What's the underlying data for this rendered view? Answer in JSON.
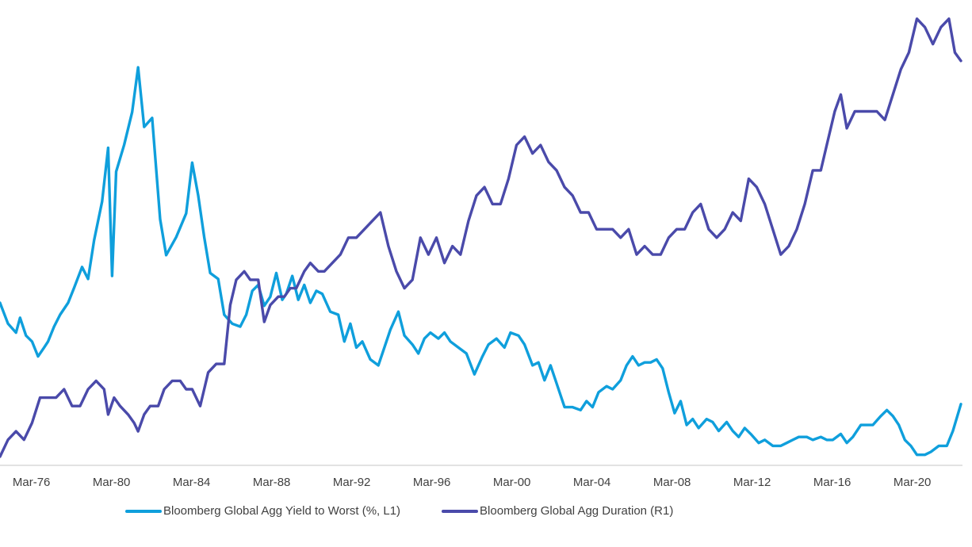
{
  "chart_data": {
    "type": "line",
    "title": "",
    "xlabel": "",
    "ylabel": "",
    "x_tick_labels": [
      "Mar-76",
      "Mar-80",
      "Mar-84",
      "Mar-88",
      "Mar-92",
      "Mar-96",
      "Mar-00",
      "Mar-04",
      "Mar-08",
      "Mar-12",
      "Mar-16",
      "Mar-20"
    ],
    "x_range": [
      1974.6,
      2022.6
    ],
    "grid": false,
    "legend_position": "bottom",
    "series": [
      {
        "name": "Bloomberg Global Agg Yield to Worst  (%, L1)",
        "axis": "left",
        "color": "#0f9fdc",
        "points": [
          [
            1974.6,
            8.4
          ],
          [
            1975.0,
            7.7
          ],
          [
            1975.4,
            7.4
          ],
          [
            1975.6,
            7.9
          ],
          [
            1975.9,
            7.3
          ],
          [
            1976.2,
            7.1
          ],
          [
            1976.5,
            6.6
          ],
          [
            1976.8,
            6.9
          ],
          [
            1977.0,
            7.1
          ],
          [
            1977.3,
            7.6
          ],
          [
            1977.6,
            8.0
          ],
          [
            1978.0,
            8.4
          ],
          [
            1978.3,
            8.9
          ],
          [
            1978.7,
            9.6
          ],
          [
            1979.0,
            9.2
          ],
          [
            1979.3,
            10.5
          ],
          [
            1979.7,
            11.8
          ],
          [
            1980.0,
            13.6
          ],
          [
            1980.2,
            9.3
          ],
          [
            1980.4,
            12.8
          ],
          [
            1980.8,
            13.7
          ],
          [
            1981.2,
            14.8
          ],
          [
            1981.5,
            16.3
          ],
          [
            1981.8,
            14.3
          ],
          [
            1982.2,
            14.6
          ],
          [
            1982.6,
            11.2
          ],
          [
            1982.9,
            10.0
          ],
          [
            1983.4,
            10.6
          ],
          [
            1983.9,
            11.4
          ],
          [
            1984.2,
            13.1
          ],
          [
            1984.5,
            12.0
          ],
          [
            1984.8,
            10.6
          ],
          [
            1985.1,
            9.4
          ],
          [
            1985.5,
            9.2
          ],
          [
            1985.8,
            8.0
          ],
          [
            1986.2,
            7.7
          ],
          [
            1986.6,
            7.6
          ],
          [
            1986.9,
            8.0
          ],
          [
            1987.2,
            8.8
          ],
          [
            1987.5,
            9.0
          ],
          [
            1987.8,
            8.3
          ],
          [
            1988.1,
            8.6
          ],
          [
            1988.4,
            9.4
          ],
          [
            1988.7,
            8.5
          ],
          [
            1988.9,
            8.7
          ],
          [
            1989.2,
            9.3
          ],
          [
            1989.5,
            8.5
          ],
          [
            1989.8,
            9.0
          ],
          [
            1990.1,
            8.4
          ],
          [
            1990.4,
            8.8
          ],
          [
            1990.7,
            8.7
          ],
          [
            1991.1,
            8.1
          ],
          [
            1991.5,
            8.0
          ],
          [
            1991.8,
            7.1
          ],
          [
            1992.1,
            7.7
          ],
          [
            1992.4,
            6.9
          ],
          [
            1992.7,
            7.1
          ],
          [
            1993.1,
            6.5
          ],
          [
            1993.5,
            6.3
          ],
          [
            1993.8,
            6.9
          ],
          [
            1994.1,
            7.5
          ],
          [
            1994.5,
            8.1
          ],
          [
            1994.8,
            7.3
          ],
          [
            1995.2,
            7.0
          ],
          [
            1995.5,
            6.7
          ],
          [
            1995.8,
            7.2
          ],
          [
            1996.1,
            7.4
          ],
          [
            1996.5,
            7.2
          ],
          [
            1996.8,
            7.4
          ],
          [
            1997.1,
            7.1
          ],
          [
            1997.5,
            6.9
          ],
          [
            1997.9,
            6.7
          ],
          [
            1998.3,
            6.0
          ],
          [
            1998.7,
            6.6
          ],
          [
            1999.0,
            7.0
          ],
          [
            1999.4,
            7.2
          ],
          [
            1999.8,
            6.9
          ],
          [
            2000.1,
            7.4
          ],
          [
            2000.5,
            7.3
          ],
          [
            2000.8,
            7.0
          ],
          [
            2001.2,
            6.3
          ],
          [
            2001.5,
            6.4
          ],
          [
            2001.8,
            5.8
          ],
          [
            2002.1,
            6.3
          ],
          [
            2002.4,
            5.7
          ],
          [
            2002.8,
            4.9
          ],
          [
            2003.2,
            4.9
          ],
          [
            2003.6,
            4.8
          ],
          [
            2003.9,
            5.1
          ],
          [
            2004.2,
            4.9
          ],
          [
            2004.5,
            5.4
          ],
          [
            2004.9,
            5.6
          ],
          [
            2005.2,
            5.5
          ],
          [
            2005.6,
            5.8
          ],
          [
            2005.9,
            6.3
          ],
          [
            2006.2,
            6.6
          ],
          [
            2006.5,
            6.3
          ],
          [
            2006.8,
            6.4
          ],
          [
            2007.1,
            6.4
          ],
          [
            2007.4,
            6.5
          ],
          [
            2007.7,
            6.2
          ],
          [
            2008.0,
            5.4
          ],
          [
            2008.3,
            4.7
          ],
          [
            2008.6,
            5.1
          ],
          [
            2008.9,
            4.3
          ],
          [
            2009.2,
            4.5
          ],
          [
            2009.5,
            4.2
          ],
          [
            2009.9,
            4.5
          ],
          [
            2010.2,
            4.4
          ],
          [
            2010.5,
            4.1
          ],
          [
            2010.9,
            4.4
          ],
          [
            2011.2,
            4.1
          ],
          [
            2011.5,
            3.9
          ],
          [
            2011.8,
            4.2
          ],
          [
            2012.1,
            4.0
          ],
          [
            2012.5,
            3.7
          ],
          [
            2012.8,
            3.8
          ],
          [
            2013.2,
            3.6
          ],
          [
            2013.6,
            3.6
          ],
          [
            2013.9,
            3.7
          ],
          [
            2014.2,
            3.8
          ],
          [
            2014.5,
            3.9
          ],
          [
            2014.9,
            3.9
          ],
          [
            2015.2,
            3.8
          ],
          [
            2015.6,
            3.9
          ],
          [
            2015.9,
            3.8
          ],
          [
            2016.2,
            3.8
          ],
          [
            2016.6,
            4.0
          ],
          [
            2016.9,
            3.7
          ],
          [
            2017.2,
            3.9
          ],
          [
            2017.6,
            4.3
          ],
          [
            2017.9,
            4.3
          ],
          [
            2018.2,
            4.3
          ],
          [
            2018.6,
            4.6
          ],
          [
            2018.9,
            4.8
          ],
          [
            2019.2,
            4.6
          ],
          [
            2019.5,
            4.3
          ],
          [
            2019.8,
            3.8
          ],
          [
            2020.1,
            3.6
          ],
          [
            2020.4,
            3.3
          ],
          [
            2020.8,
            3.3
          ],
          [
            2021.1,
            3.4
          ],
          [
            2021.5,
            3.6
          ],
          [
            2021.9,
            3.6
          ],
          [
            2022.2,
            4.1
          ],
          [
            2022.6,
            5.0
          ]
        ]
      },
      {
        "name": "Bloomberg Global Agg  Duration  (R1)",
        "axis": "right",
        "color": "#4a4aaa",
        "points": [
          [
            1974.6,
            4.2
          ],
          [
            1975.0,
            4.4
          ],
          [
            1975.4,
            4.5
          ],
          [
            1975.8,
            4.4
          ],
          [
            1976.2,
            4.6
          ],
          [
            1976.6,
            4.9
          ],
          [
            1977.0,
            4.9
          ],
          [
            1977.4,
            4.9
          ],
          [
            1977.8,
            5.0
          ],
          [
            1978.2,
            4.8
          ],
          [
            1978.6,
            4.8
          ],
          [
            1979.0,
            5.0
          ],
          [
            1979.4,
            5.1
          ],
          [
            1979.8,
            5.0
          ],
          [
            1980.0,
            4.7
          ],
          [
            1980.3,
            4.9
          ],
          [
            1980.6,
            4.8
          ],
          [
            1981.0,
            4.7
          ],
          [
            1981.3,
            4.6
          ],
          [
            1981.5,
            4.5
          ],
          [
            1981.8,
            4.7
          ],
          [
            1982.1,
            4.8
          ],
          [
            1982.5,
            4.8
          ],
          [
            1982.8,
            5.0
          ],
          [
            1983.2,
            5.1
          ],
          [
            1983.6,
            5.1
          ],
          [
            1983.9,
            5.0
          ],
          [
            1984.2,
            5.0
          ],
          [
            1984.6,
            4.8
          ],
          [
            1985.0,
            5.2
          ],
          [
            1985.4,
            5.3
          ],
          [
            1985.8,
            5.3
          ],
          [
            1986.1,
            6.0
          ],
          [
            1986.4,
            6.3
          ],
          [
            1986.8,
            6.4
          ],
          [
            1987.1,
            6.3
          ],
          [
            1987.5,
            6.3
          ],
          [
            1987.8,
            5.8
          ],
          [
            1988.1,
            6.0
          ],
          [
            1988.5,
            6.1
          ],
          [
            1988.8,
            6.1
          ],
          [
            1989.1,
            6.2
          ],
          [
            1989.4,
            6.2
          ],
          [
            1989.8,
            6.4
          ],
          [
            1990.1,
            6.5
          ],
          [
            1990.5,
            6.4
          ],
          [
            1990.8,
            6.4
          ],
          [
            1991.2,
            6.5
          ],
          [
            1991.6,
            6.6
          ],
          [
            1992.0,
            6.8
          ],
          [
            1992.4,
            6.8
          ],
          [
            1992.8,
            6.9
          ],
          [
            1993.2,
            7.0
          ],
          [
            1993.6,
            7.1
          ],
          [
            1994.0,
            6.7
          ],
          [
            1994.4,
            6.4
          ],
          [
            1994.8,
            6.2
          ],
          [
            1995.2,
            6.3
          ],
          [
            1995.6,
            6.8
          ],
          [
            1996.0,
            6.6
          ],
          [
            1996.4,
            6.8
          ],
          [
            1996.8,
            6.5
          ],
          [
            1997.2,
            6.7
          ],
          [
            1997.6,
            6.6
          ],
          [
            1998.0,
            7.0
          ],
          [
            1998.4,
            7.3
          ],
          [
            1998.8,
            7.4
          ],
          [
            1999.2,
            7.2
          ],
          [
            1999.6,
            7.2
          ],
          [
            2000.0,
            7.5
          ],
          [
            2000.4,
            7.9
          ],
          [
            2000.8,
            8.0
          ],
          [
            2001.2,
            7.8
          ],
          [
            2001.6,
            7.9
          ],
          [
            2002.0,
            7.7
          ],
          [
            2002.4,
            7.6
          ],
          [
            2002.8,
            7.4
          ],
          [
            2003.2,
            7.3
          ],
          [
            2003.6,
            7.1
          ],
          [
            2004.0,
            7.1
          ],
          [
            2004.4,
            6.9
          ],
          [
            2004.8,
            6.9
          ],
          [
            2005.2,
            6.9
          ],
          [
            2005.6,
            6.8
          ],
          [
            2006.0,
            6.9
          ],
          [
            2006.4,
            6.6
          ],
          [
            2006.8,
            6.7
          ],
          [
            2007.2,
            6.6
          ],
          [
            2007.6,
            6.6
          ],
          [
            2008.0,
            6.8
          ],
          [
            2008.4,
            6.9
          ],
          [
            2008.8,
            6.9
          ],
          [
            2009.2,
            7.1
          ],
          [
            2009.6,
            7.2
          ],
          [
            2010.0,
            6.9
          ],
          [
            2010.4,
            6.8
          ],
          [
            2010.8,
            6.9
          ],
          [
            2011.2,
            7.1
          ],
          [
            2011.6,
            7.0
          ],
          [
            2012.0,
            7.5
          ],
          [
            2012.4,
            7.4
          ],
          [
            2012.8,
            7.2
          ],
          [
            2013.2,
            6.9
          ],
          [
            2013.6,
            6.6
          ],
          [
            2014.0,
            6.7
          ],
          [
            2014.4,
            6.9
          ],
          [
            2014.8,
            7.2
          ],
          [
            2015.2,
            7.6
          ],
          [
            2015.6,
            7.6
          ],
          [
            2015.9,
            7.9
          ],
          [
            2016.3,
            8.3
          ],
          [
            2016.6,
            8.5
          ],
          [
            2016.9,
            8.1
          ],
          [
            2017.3,
            8.3
          ],
          [
            2017.7,
            8.3
          ],
          [
            2018.0,
            8.3
          ],
          [
            2018.4,
            8.3
          ],
          [
            2018.8,
            8.2
          ],
          [
            2019.2,
            8.5
          ],
          [
            2019.6,
            8.8
          ],
          [
            2020.0,
            9.0
          ],
          [
            2020.4,
            9.4
          ],
          [
            2020.8,
            9.3
          ],
          [
            2021.2,
            9.1
          ],
          [
            2021.6,
            9.3
          ],
          [
            2022.0,
            9.4
          ],
          [
            2022.3,
            9.0
          ],
          [
            2022.6,
            8.9
          ]
        ]
      }
    ]
  },
  "legend": {
    "items": [
      {
        "label": "Bloomberg Global Agg Yield to Worst  (%, L1)",
        "color": "#0f9fdc"
      },
      {
        "label": "Bloomberg Global Agg  Duration  (R1)",
        "color": "#4a4aaa"
      }
    ]
  }
}
